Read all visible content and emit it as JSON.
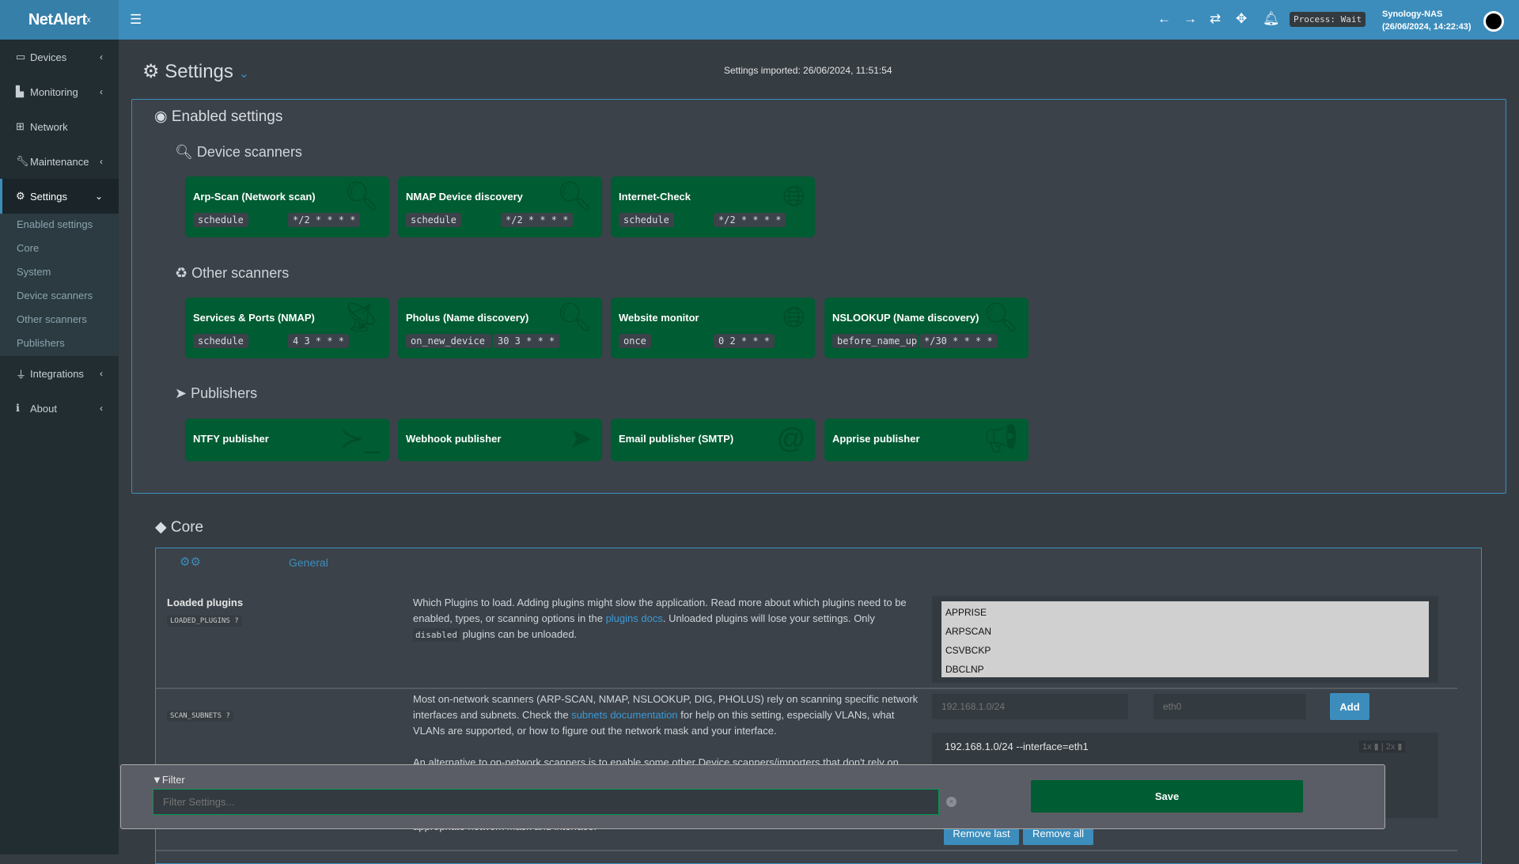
{
  "app": {
    "logo": "NetAlert",
    "logo_sup": "x"
  },
  "topbar": {
    "process": "Process: Wait",
    "host": "Synology-NAS",
    "datetime": "(26/06/2024, 14:22:43)"
  },
  "sidebar": {
    "items": [
      {
        "label": "Devices"
      },
      {
        "label": "Monitoring"
      },
      {
        "label": "Network"
      },
      {
        "label": "Maintenance"
      },
      {
        "label": "Settings"
      },
      {
        "label": "Integrations"
      },
      {
        "label": "About"
      }
    ],
    "subitems": [
      "Enabled settings",
      "Core",
      "System",
      "Device scanners",
      "Other scanners",
      "Publishers"
    ]
  },
  "page": {
    "title": "Settings",
    "imported": "Settings imported: 26/06/2024, 11:51:54"
  },
  "enabled": {
    "title": "Enabled settings",
    "device_scanners": {
      "title": "Device scanners",
      "cards": [
        {
          "name": "Arp-Scan (Network scan)",
          "mode": "schedule",
          "cron": "*/2 * * * *",
          "icon": "search"
        },
        {
          "name": "NMAP Device discovery",
          "mode": "schedule",
          "cron": "*/2 * * * *",
          "icon": "search"
        },
        {
          "name": "Internet-Check",
          "mode": "schedule",
          "cron": "*/2 * * * *",
          "icon": "globe"
        }
      ]
    },
    "other_scanners": {
      "title": "Other scanners",
      "cards": [
        {
          "name": "Services & Ports (NMAP)",
          "mode": "schedule",
          "cron": "4 3 * * *",
          "icon": "satellite-dish"
        },
        {
          "name": "Pholus (Name discovery)",
          "mode": "on_new_device",
          "cron": "30 3 * * *",
          "icon": "search"
        },
        {
          "name": "Website monitor",
          "mode": "once",
          "cron": "0 2 * * *",
          "icon": "globe"
        },
        {
          "name": "NSLOOKUP (Name discovery)",
          "mode": "before_name_updates",
          "cron": "*/30 * * * *",
          "icon": "search"
        }
      ]
    },
    "publishers": {
      "title": "Publishers",
      "cards": [
        {
          "name": "NTFY publisher",
          "icon": "terminal"
        },
        {
          "name": "Webhook publisher",
          "icon": "paper-plane"
        },
        {
          "name": "Email publisher (SMTP)",
          "icon": "at"
        },
        {
          "name": "Apprise publisher",
          "icon": "bullhorn"
        }
      ]
    }
  },
  "core": {
    "title": "Core",
    "tab": "General",
    "loaded_plugins": {
      "label": "Loaded plugins",
      "code": "LOADED_PLUGINS",
      "desc1": "Which Plugins to load. Adding plugins might slow the application. Read more about which plugins need to be enabled, types, or scanning options in the ",
      "link": "plugins docs",
      "desc2": ". Unloaded plugins will lose your settings. Only ",
      "code_inline": "disabled",
      "desc3": " plugins can be unloaded.",
      "options": [
        "APPRISE",
        "ARPSCAN",
        "CSVBCKP",
        "DBCLNP"
      ]
    },
    "scan_subnets": {
      "code": "SCAN_SUBNETS",
      "desc1": "Most on-network scanners (ARP-SCAN, NMAP, NSLOOKUP, DIG, PHOLUS) rely on scanning specific network interfaces and subnets. Check the ",
      "link": "subnets documentation",
      "desc2": " for help on this setting, especially VLANs, what VLANs are supported, or how to figure out the network mask and your interface.",
      "desc3": "An alternative to on-network scanners is to enable some other Device scanners/importers that don't rely on",
      "desc4": "appropriate network mask and interface.",
      "subnet_placeholder": "192.168.1.0/24",
      "iface_placeholder": "eth0",
      "add": "Add",
      "entries": [
        "192.168.1.0/24 --interface=eth1"
      ],
      "remove_last": "Remove last",
      "remove_all": "Remove all"
    }
  },
  "filter": {
    "label": "Filter",
    "placeholder": "Filter Settings...",
    "save": "Save"
  }
}
